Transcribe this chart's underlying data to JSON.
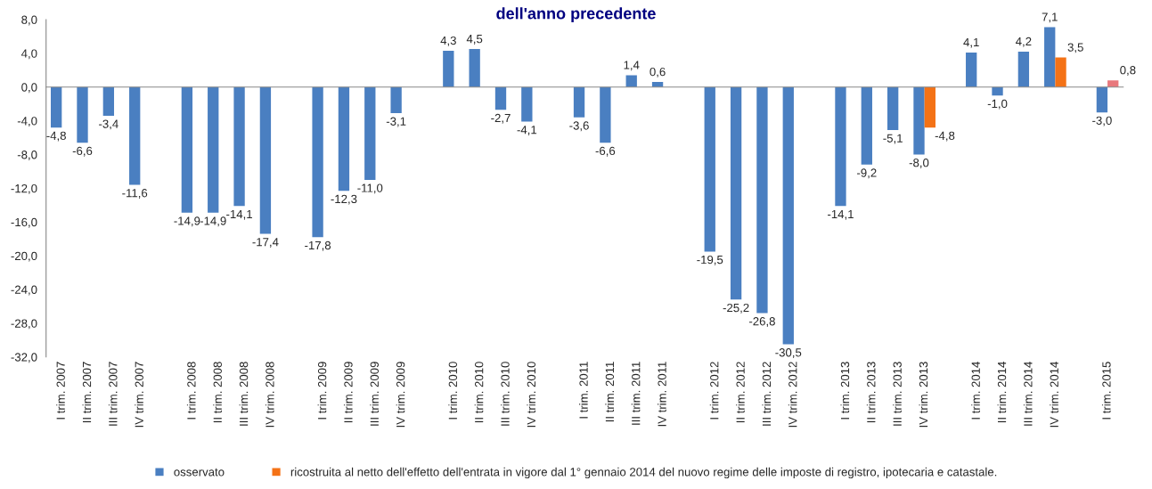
{
  "chart_data": {
    "type": "bar",
    "title": "dell'anno precedente",
    "categories": [
      "I trim. 2007",
      "II trim. 2007",
      "III trim. 2007",
      "IV trim. 2007",
      null,
      "I trim. 2008",
      "II trim. 2008",
      "III trim. 2008",
      "IV trim. 2008",
      null,
      "I trim. 2009",
      "II trim. 2009",
      "III trim. 2009",
      "IV trim. 2009",
      null,
      "I trim. 2010",
      "II trim. 2010",
      "III trim. 2010",
      "IV trim. 2010",
      null,
      "I trim. 2011",
      "II trim. 2011",
      "III trim. 2011",
      "IV trim. 2011",
      null,
      "I trim. 2012",
      "II trim. 2012",
      "III trim. 2012",
      "IV trim. 2012",
      null,
      "I trim. 2013",
      "II trim. 2013",
      "III trim. 2013",
      "IV trim. 2013",
      null,
      "I trim. 2014",
      "II trim. 2014",
      "III trim. 2014",
      "IV trim. 2014",
      null,
      "I trim. 2015"
    ],
    "series": [
      {
        "name": "osservato",
        "color": "#4a7fc1",
        "values": [
          -4.8,
          -6.6,
          -3.4,
          -11.6,
          null,
          -14.9,
          -14.9,
          -14.1,
          -17.4,
          null,
          -17.8,
          -12.3,
          -11.0,
          -3.1,
          null,
          4.3,
          4.5,
          -2.7,
          -4.1,
          null,
          -3.6,
          -6.6,
          1.4,
          0.6,
          null,
          -19.5,
          -25.2,
          -26.8,
          -30.5,
          null,
          -14.1,
          -9.2,
          -5.1,
          -8.0,
          null,
          4.1,
          -1.0,
          4.2,
          7.1,
          null,
          -3.0
        ],
        "value_labels": [
          "-4,8",
          "-6,6",
          "-3,4",
          "-11,6",
          null,
          "-14,9",
          "-14,9",
          "-14,1",
          "-17,4",
          null,
          "-17,8",
          "-12,3",
          "-11,0",
          "-3,1",
          null,
          "4,3",
          "4,5",
          "-2,7",
          "-4,1",
          null,
          "-3,6",
          "-6,6",
          "1,4",
          "0,6",
          null,
          "-19,5",
          "-25,2",
          "-26,8",
          "-30,5",
          null,
          "-14,1",
          "-9,2",
          "-5,1",
          "-8,0",
          null,
          "4,1",
          "-1,0",
          "4,2",
          "7,1",
          null,
          "-3,0"
        ]
      },
      {
        "name": "ricostruita al netto dell'effetto dell'entrata in vigore dal 1° gennaio 2014 del nuovo regime delle imposte di registro, ipotecaria e catastale.",
        "color": "#f47216",
        "colors": [
          null,
          null,
          null,
          null,
          null,
          null,
          null,
          null,
          null,
          null,
          null,
          null,
          null,
          null,
          null,
          null,
          null,
          null,
          null,
          null,
          null,
          null,
          null,
          null,
          null,
          null,
          null,
          null,
          null,
          null,
          null,
          null,
          null,
          "#f47216",
          null,
          null,
          null,
          null,
          "#f47216",
          null,
          "#e8787c"
        ],
        "values": [
          null,
          null,
          null,
          null,
          null,
          null,
          null,
          null,
          null,
          null,
          null,
          null,
          null,
          null,
          null,
          null,
          null,
          null,
          null,
          null,
          null,
          null,
          null,
          null,
          null,
          null,
          null,
          null,
          null,
          null,
          null,
          null,
          null,
          -4.8,
          null,
          null,
          null,
          null,
          3.5,
          null,
          0.8
        ],
        "value_labels": [
          null,
          null,
          null,
          null,
          null,
          null,
          null,
          null,
          null,
          null,
          null,
          null,
          null,
          null,
          null,
          null,
          null,
          null,
          null,
          null,
          null,
          null,
          null,
          null,
          null,
          null,
          null,
          null,
          null,
          null,
          null,
          null,
          null,
          "-4,8",
          null,
          null,
          null,
          null,
          "3,5",
          null,
          "0,8"
        ]
      }
    ],
    "ylim": [
      -32,
      8
    ],
    "yticks": [
      {
        "value": -32,
        "label": "-32,0"
      },
      {
        "value": -28,
        "label": "-28,0"
      },
      {
        "value": -24,
        "label": "-24,0"
      },
      {
        "value": -20,
        "label": "-20,0"
      },
      {
        "value": -16,
        "label": "-16,0"
      },
      {
        "value": -12,
        "label": "-12,0"
      },
      {
        "value": -8,
        "label": "-8,0"
      },
      {
        "value": -4,
        "label": "-4,0"
      },
      {
        "value": 0,
        "label": "0,0"
      },
      {
        "value": 4,
        "label": "4,0"
      },
      {
        "value": 8,
        "label": "8,0"
      }
    ],
    "legend": "bottom"
  }
}
